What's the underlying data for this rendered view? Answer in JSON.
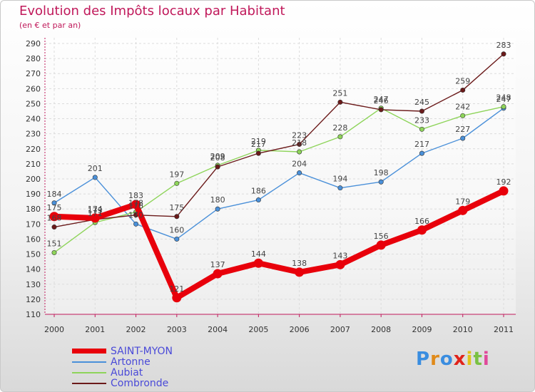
{
  "title": "Evolution des Impôts locaux par Habitant",
  "subtitle": "(en € et par an)",
  "logo": {
    "text": "Proxiti",
    "letter_colors": [
      "#3a8de0",
      "#e08a1a",
      "#3a8de0",
      "#e0231a",
      "#e0c41a",
      "#7ac143",
      "#e04a9a"
    ]
  },
  "chart_data": {
    "type": "line",
    "title": "Evolution des Impôts locaux par Habitant",
    "subtitle": "(en € et par an)",
    "xlabel": "",
    "ylabel": "",
    "x": [
      "2000",
      "2001",
      "2002",
      "2003",
      "2004",
      "2005",
      "2006",
      "2007",
      "2008",
      "2009",
      "2010",
      "2011"
    ],
    "ylim": [
      110,
      290
    ],
    "yticks": [
      110,
      120,
      130,
      140,
      150,
      160,
      170,
      180,
      190,
      200,
      210,
      220,
      230,
      240,
      250,
      260,
      270,
      280,
      290
    ],
    "grid": true,
    "legend_position": "bottom-left",
    "series": [
      {
        "name": "SAINT-MYON",
        "color": "#e8000b",
        "emphasis": "thick",
        "values": [
          175,
          174,
          183,
          121,
          137,
          144,
          138,
          143,
          156,
          166,
          179,
          192
        ]
      },
      {
        "name": "Artonne",
        "color": "#4a90d9",
        "emphasis": "normal",
        "values": [
          184,
          201,
          170,
          160,
          180,
          186,
          204,
          194,
          198,
          217,
          227,
          247
        ]
      },
      {
        "name": "Aubiat",
        "color": "#8ed45a",
        "emphasis": "normal",
        "values": [
          151,
          171,
          178,
          197,
          209,
          219,
          218,
          228,
          247,
          233,
          242,
          248
        ]
      },
      {
        "name": "Combronde",
        "color": "#6b1a1a",
        "emphasis": "normal",
        "values": [
          168,
          173,
          176,
          175,
          208,
          217,
          223,
          251,
          246,
          245,
          259,
          283
        ]
      }
    ]
  }
}
